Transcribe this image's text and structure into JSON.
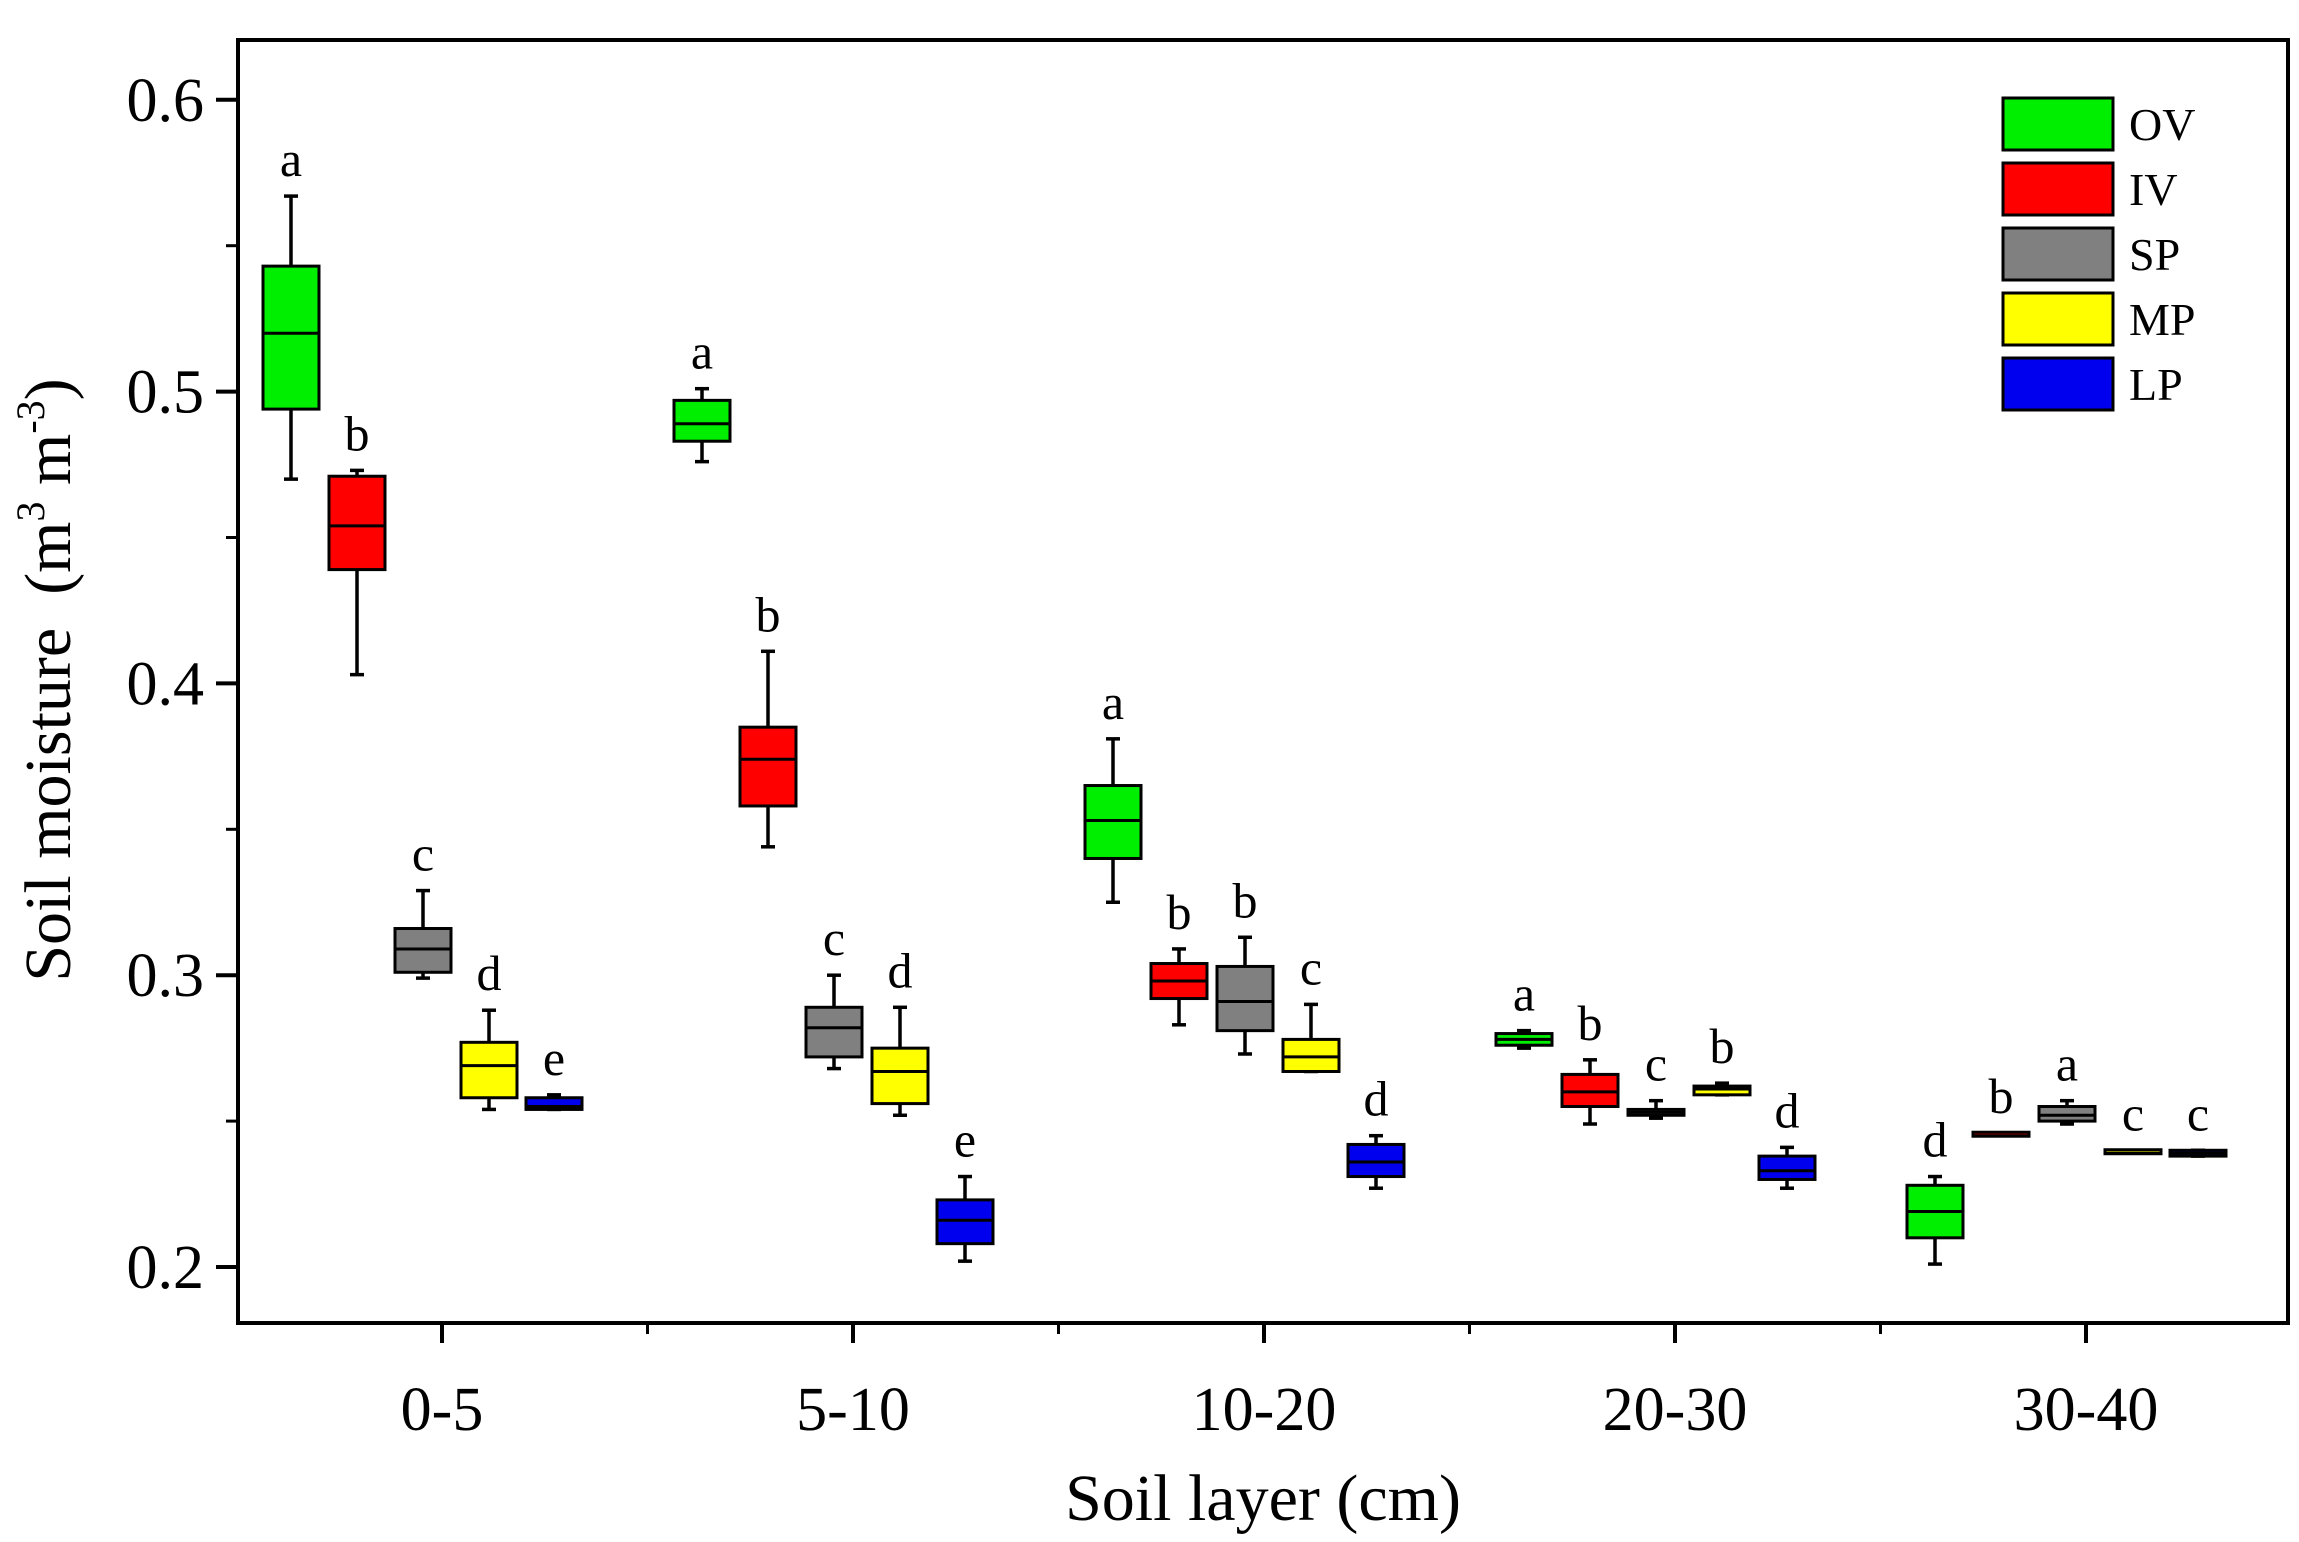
{
  "chart_data": {
    "type": "box",
    "xlabel": "Soil layer (cm)",
    "ylabel_main": "Soil moisture  (m",
    "ylabel_sup1": "3",
    "ylabel_mid": " m",
    "ylabel_sup2": "-3",
    "ylabel_end": ")",
    "ylim": [
      0.18,
      0.62
    ],
    "yticks": [
      0.2,
      0.3,
      0.4,
      0.5,
      0.6
    ],
    "ytick_labels": [
      "0.2",
      "0.3",
      "0.4",
      "0.5",
      "0.6"
    ],
    "yminor": [
      0.25,
      0.35,
      0.45,
      0.55
    ],
    "categories": [
      "0-5",
      "5-10",
      "10-20",
      "20-30",
      "30-40"
    ],
    "series": [
      {
        "name": "OV",
        "color": "#00ee00",
        "boxes": [
          {
            "min": 0.47,
            "q1": 0.494,
            "median": 0.52,
            "q3": 0.543,
            "max": 0.567,
            "sig": "a"
          },
          {
            "min": 0.476,
            "q1": 0.483,
            "median": 0.489,
            "q3": 0.497,
            "max": 0.501,
            "sig": "a"
          },
          {
            "min": 0.325,
            "q1": 0.34,
            "median": 0.353,
            "q3": 0.365,
            "max": 0.381,
            "sig": "a"
          },
          {
            "min": 0.275,
            "q1": 0.276,
            "median": 0.278,
            "q3": 0.28,
            "max": 0.281,
            "sig": "a"
          },
          {
            "min": 0.201,
            "q1": 0.21,
            "median": 0.219,
            "q3": 0.228,
            "max": 0.231,
            "sig": "d"
          }
        ]
      },
      {
        "name": "IV",
        "color": "#ff0000",
        "boxes": [
          {
            "min": 0.403,
            "q1": 0.439,
            "median": 0.454,
            "q3": 0.471,
            "max": 0.473,
            "sig": "b"
          },
          {
            "min": 0.344,
            "q1": 0.358,
            "median": 0.374,
            "q3": 0.385,
            "max": 0.411,
            "sig": "b"
          },
          {
            "min": 0.283,
            "q1": 0.292,
            "median": 0.298,
            "q3": 0.304,
            "max": 0.309,
            "sig": "b"
          },
          {
            "min": 0.249,
            "q1": 0.255,
            "median": 0.26,
            "q3": 0.266,
            "max": 0.271,
            "sig": "b"
          },
          {
            "min": 0.245,
            "q1": 0.245,
            "median": 0.245,
            "q3": 0.246,
            "max": 0.246,
            "sig": "b"
          }
        ]
      },
      {
        "name": "SP",
        "color": "#808080",
        "boxes": [
          {
            "min": 0.299,
            "q1": 0.301,
            "median": 0.309,
            "q3": 0.316,
            "max": 0.329,
            "sig": "c"
          },
          {
            "min": 0.268,
            "q1": 0.272,
            "median": 0.282,
            "q3": 0.289,
            "max": 0.3,
            "sig": "c"
          },
          {
            "min": 0.273,
            "q1": 0.281,
            "median": 0.291,
            "q3": 0.303,
            "max": 0.313,
            "sig": "b"
          },
          {
            "min": 0.251,
            "q1": 0.252,
            "median": 0.253,
            "q3": 0.254,
            "max": 0.257,
            "sig": "c"
          },
          {
            "min": 0.249,
            "q1": 0.25,
            "median": 0.252,
            "q3": 0.255,
            "max": 0.257,
            "sig": "a"
          }
        ]
      },
      {
        "name": "MP",
        "color": "#ffff00",
        "boxes": [
          {
            "min": 0.254,
            "q1": 0.258,
            "median": 0.269,
            "q3": 0.277,
            "max": 0.288,
            "sig": "d"
          },
          {
            "min": 0.252,
            "q1": 0.256,
            "median": 0.267,
            "q3": 0.275,
            "max": 0.289,
            "sig": "d"
          },
          {
            "min": 0.267,
            "q1": 0.267,
            "median": 0.272,
            "q3": 0.278,
            "max": 0.29,
            "sig": "c"
          },
          {
            "min": 0.259,
            "q1": 0.259,
            "median": 0.261,
            "q3": 0.262,
            "max": 0.263,
            "sig": "b"
          },
          {
            "min": 0.239,
            "q1": 0.239,
            "median": 0.239,
            "q3": 0.24,
            "max": 0.24,
            "sig": "c"
          }
        ]
      },
      {
        "name": "LP",
        "color": "#0000ee",
        "boxes": [
          {
            "min": 0.254,
            "q1": 0.254,
            "median": 0.255,
            "q3": 0.258,
            "max": 0.259,
            "sig": "e"
          },
          {
            "min": 0.202,
            "q1": 0.208,
            "median": 0.216,
            "q3": 0.223,
            "max": 0.231,
            "sig": "e"
          },
          {
            "min": 0.227,
            "q1": 0.231,
            "median": 0.236,
            "q3": 0.242,
            "max": 0.245,
            "sig": "d"
          },
          {
            "min": 0.227,
            "q1": 0.23,
            "median": 0.233,
            "q3": 0.238,
            "max": 0.241,
            "sig": "d"
          },
          {
            "min": 0.238,
            "q1": 0.238,
            "median": 0.239,
            "q3": 0.24,
            "max": 0.24,
            "sig": "c"
          }
        ]
      }
    ],
    "legend": [
      "OV",
      "IV",
      "SP",
      "MP",
      "LP"
    ],
    "legend_position": "top-right",
    "grid": false
  }
}
